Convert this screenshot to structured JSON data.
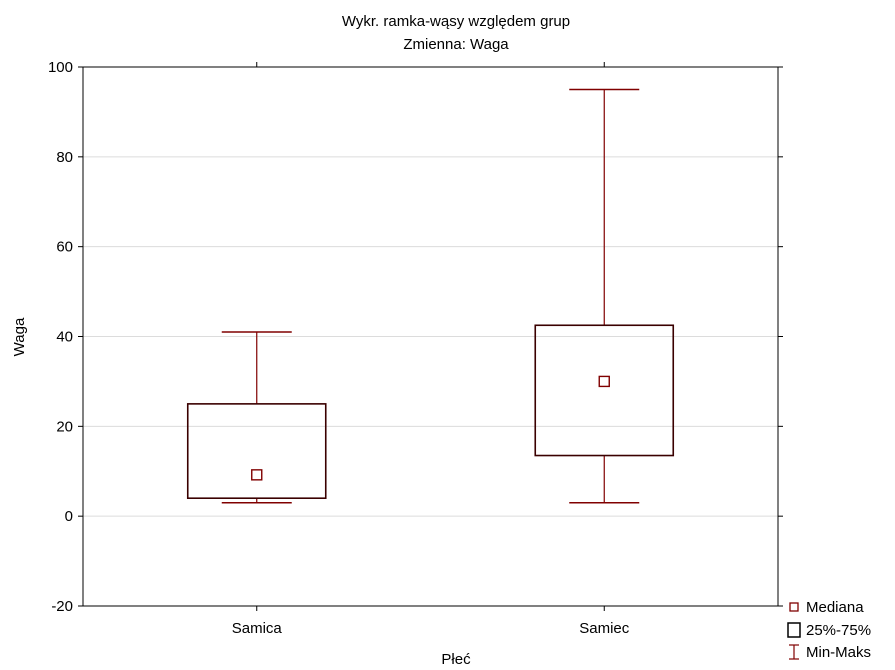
{
  "chart_data": {
    "type": "boxplot",
    "title": "Wykr. ramka-wąsy względem grup",
    "subtitle": "Zmienna:  Waga",
    "xlabel": "Płeć",
    "ylabel": "Waga",
    "ylim": [
      -20,
      100
    ],
    "yticks": [
      -20,
      0,
      20,
      40,
      60,
      80,
      100
    ],
    "grid": true,
    "categories": [
      "Samica",
      "Samiec"
    ],
    "boxes": [
      {
        "category": "Samica",
        "min": 3,
        "q1": 4,
        "median": 9.2,
        "q3": 25,
        "max": 41
      },
      {
        "category": "Samiec",
        "min": 3,
        "q1": 13.5,
        "median": 30,
        "q3": 42.5,
        "max": 95
      }
    ],
    "legend": {
      "placement": "bottom-right",
      "items": [
        {
          "symbol": "median",
          "label": "Mediana"
        },
        {
          "symbol": "box",
          "label": "25%-75%"
        },
        {
          "symbol": "whisker",
          "label": "Min-Maks"
        }
      ]
    },
    "colors": {
      "stroke": "#800000",
      "grid": "#dcdcdc",
      "axis": "#000000"
    }
  }
}
